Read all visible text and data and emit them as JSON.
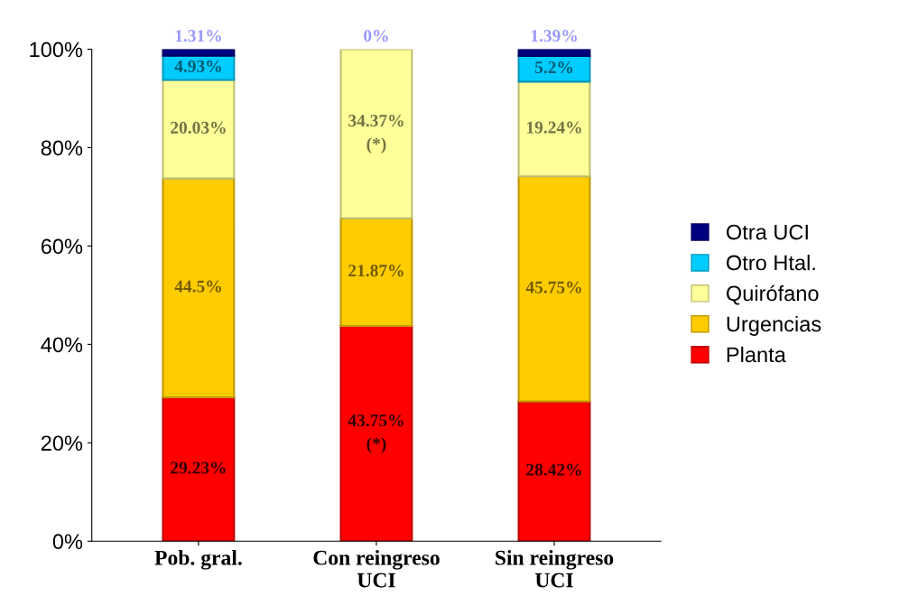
{
  "chart_data": {
    "type": "bar",
    "stacked": true,
    "categories": [
      "Pob. gral.",
      "Con reingreso\nUCI",
      "Sin reingreso\nUCI"
    ],
    "ylim": [
      0,
      100
    ],
    "yticks": [
      {
        "value": 0,
        "label": "0%"
      },
      {
        "value": 20,
        "label": "20%"
      },
      {
        "value": 40,
        "label": "40%"
      },
      {
        "value": 60,
        "label": "60%"
      },
      {
        "value": 80,
        "label": "80%"
      },
      {
        "value": 100,
        "label": "100%"
      }
    ],
    "grid": false,
    "legend": "right",
    "series": [
      {
        "name": "Planta",
        "color": "#ff0000",
        "values": [
          29.23,
          43.75,
          28.42
        ],
        "value_labels": [
          "29.23%",
          "43.75%\n(*)",
          "28.42%"
        ]
      },
      {
        "name": "Urgencias",
        "color": "#ffcc00",
        "values": [
          44.5,
          21.87,
          45.75
        ],
        "value_labels": [
          "44.5%",
          "21.87%",
          "45.75%"
        ]
      },
      {
        "name": "Quirófano",
        "color": "#ffff99",
        "values": [
          20.03,
          34.37,
          19.24
        ],
        "value_labels": [
          "20.03%",
          "34.37%\n(*)",
          "19.24%"
        ]
      },
      {
        "name": "Otro Htal.",
        "color": "#00ccff",
        "values": [
          4.93,
          0,
          5.2
        ],
        "value_labels": [
          "4.93%",
          null,
          "5.2%"
        ]
      },
      {
        "name": "Otra UCI",
        "color": "#000080",
        "values": [
          1.31,
          0,
          1.39
        ],
        "value_labels": [
          "1.31%",
          "0%",
          "1.39%"
        ]
      }
    ]
  }
}
